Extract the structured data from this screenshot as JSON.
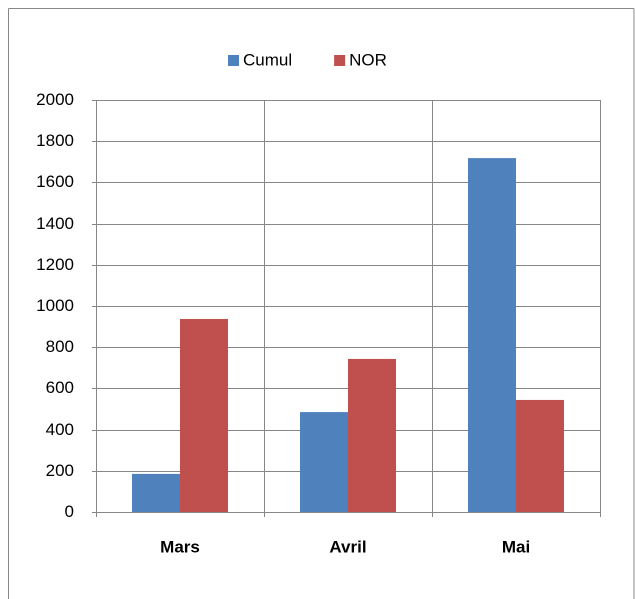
{
  "chart_data": {
    "type": "bar",
    "categories": [
      "Mars",
      "Avril",
      "Mai"
    ],
    "series": [
      {
        "name": "Cumul",
        "color": "#4f81bd",
        "values": [
          185,
          485,
          1718
        ]
      },
      {
        "name": "NOR",
        "color": "#c0504d",
        "values": [
          937,
          743,
          544
        ]
      }
    ],
    "ylim": [
      0,
      2000
    ],
    "yticks": [
      0,
      200,
      400,
      600,
      800,
      1000,
      1200,
      1400,
      1600,
      1800,
      2000
    ],
    "grid": true,
    "legend": "top"
  }
}
